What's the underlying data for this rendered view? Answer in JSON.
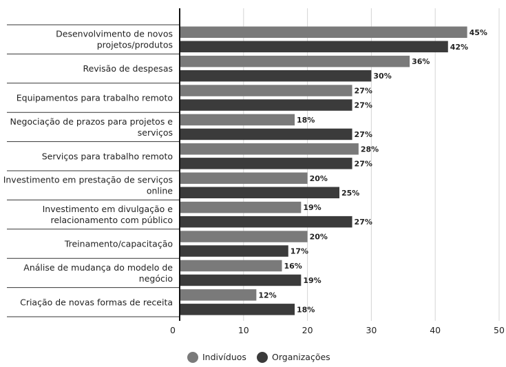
{
  "chart_data": {
    "type": "bar",
    "orientation": "horizontal",
    "categories": [
      [
        "Desenvolvimento de novos",
        "projetos/produtos"
      ],
      [
        "Revisão de despesas"
      ],
      [
        "Equipamentos para trabalho remoto"
      ],
      [
        "Negociação de prazos para projetos e",
        "serviços"
      ],
      [
        "Serviços para trabalho remoto"
      ],
      [
        "Investimento em prestação de serviços",
        "online"
      ],
      [
        "Investimento em divulgação e",
        "relacionamento com público"
      ],
      [
        "Treinamento/capacitação"
      ],
      [
        "Análise de mudança do modelo de",
        "negócio"
      ],
      [
        "Criação de novas formas de receita"
      ]
    ],
    "series": [
      {
        "name": "Indivíduos",
        "color": "#7a7a7a",
        "values": [
          45,
          36,
          27,
          18,
          28,
          20,
          19,
          20,
          16,
          12
        ]
      },
      {
        "name": "Organizações",
        "color": "#3b3b3b",
        "values": [
          42,
          30,
          27,
          27,
          27,
          25,
          27,
          17,
          19,
          18
        ]
      }
    ],
    "value_suffix": "%",
    "xlim": [
      0,
      50
    ],
    "xticks": [
      0,
      10,
      20,
      30,
      40,
      50
    ],
    "grid": true,
    "legend_position": "bottom-center"
  }
}
